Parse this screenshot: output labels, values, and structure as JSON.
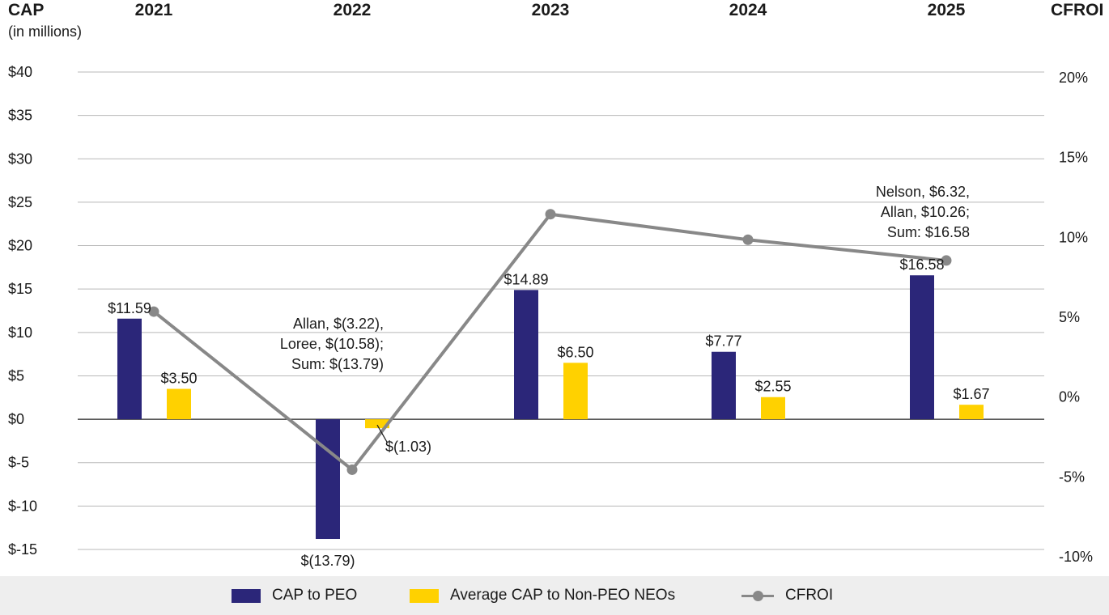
{
  "chart_data": {
    "type": "bar",
    "left_axis": {
      "title": "CAP",
      "subtitle": "(in millions)",
      "range": [
        -15,
        40
      ],
      "ticks": [
        "$40",
        "$35",
        "$30",
        "$25",
        "$20",
        "$15",
        "$10",
        "$5",
        "$0",
        "$-5",
        "$-10",
        "$-15"
      ],
      "tick_values": [
        40,
        35,
        30,
        25,
        20,
        15,
        10,
        5,
        0,
        -5,
        -10,
        -15
      ]
    },
    "right_axis": {
      "title": "CFROI",
      "range": [
        -10,
        20
      ],
      "ticks": [
        "20%",
        "15%",
        "10%",
        "5%",
        "0%",
        "-5%",
        "-10%"
      ],
      "tick_values": [
        20,
        15,
        10,
        5,
        0,
        -5,
        -10
      ]
    },
    "categories": [
      "2021",
      "2022",
      "2023",
      "2024",
      "2025"
    ],
    "series": [
      {
        "name": "CAP to PEO",
        "type": "bar",
        "color": "#2b2679",
        "values": [
          11.59,
          -13.79,
          14.89,
          7.77,
          16.58
        ],
        "labels": [
          "$11.59",
          "$(13.79)",
          "$14.89",
          "$7.77",
          "$16.58"
        ]
      },
      {
        "name": "Average CAP to Non-PEO NEOs",
        "type": "bar",
        "color": "#ffd100",
        "values": [
          3.5,
          -1.03,
          6.5,
          2.55,
          1.67
        ],
        "labels": [
          "$3.50",
          "$(1.03)",
          "$6.50",
          "$2.55",
          "$1.67"
        ]
      },
      {
        "name": "CFROI",
        "type": "line",
        "color": "#888888",
        "values": [
          5.3,
          -4.6,
          11.4,
          9.8,
          8.5
        ]
      }
    ],
    "annotations": [
      {
        "category": "2022",
        "lines": [
          "Allan, $(3.22),",
          "Loree, $(10.58);",
          "Sum: $(13.79)"
        ]
      },
      {
        "category": "2025",
        "lines": [
          "Nelson, $6.32,",
          "Allan, $10.26;",
          "Sum: $16.58"
        ]
      }
    ],
    "legend": {
      "placement": "bottom",
      "items": [
        "CAP to PEO",
        "Average CAP to Non-PEO NEOs",
        "CFROI"
      ]
    }
  }
}
